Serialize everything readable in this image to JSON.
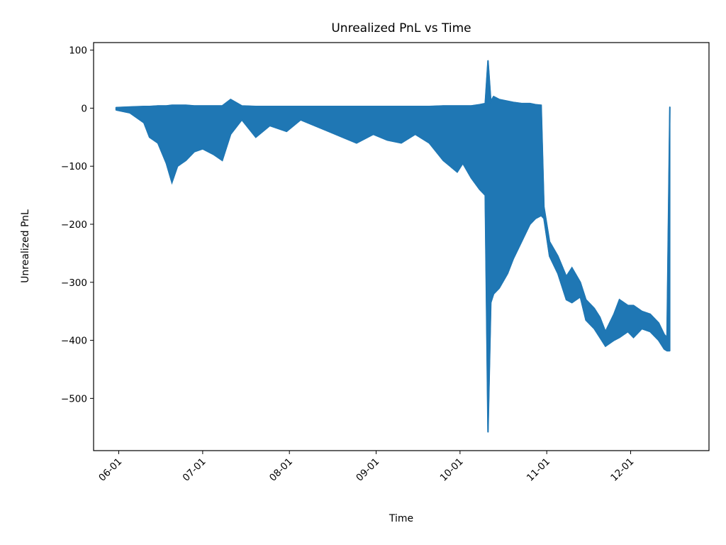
{
  "chart_data": {
    "type": "line",
    "title": "Unrealized PnL vs Time",
    "xlabel": "Time",
    "ylabel": "Unrealized PnL",
    "x_ticks": [
      "06-01",
      "07-01",
      "08-01",
      "09-01",
      "10-01",
      "11-01",
      "12-01"
    ],
    "y_ticks": [
      "100",
      "0",
      "−100",
      "−200",
      "−300",
      "−400",
      "−500"
    ],
    "x_range": [
      "05-23",
      "12-29"
    ],
    "ylim": [
      -590,
      113
    ],
    "grid": false,
    "legend": "none",
    "series_color": "#1f77b4",
    "series": [
      {
        "x": [
          "05-31",
          "06-05",
          "06-10",
          "06-12",
          "06-15",
          "06-18",
          "06-20",
          "06-22",
          "06-25",
          "06-28",
          "07-01",
          "07-05",
          "07-08",
          "07-11",
          "07-15",
          "07-20",
          "07-25",
          "07-31",
          "08-05",
          "08-10",
          "08-15",
          "08-20",
          "08-25",
          "08-31",
          "09-05",
          "09-10",
          "09-15",
          "09-20",
          "09-25",
          "09-30",
          "10-02",
          "10-05",
          "10-08",
          "10-10",
          "10-11",
          "10-12",
          "10-13",
          "10-15",
          "10-18",
          "10-20",
          "10-23",
          "10-26",
          "10-28",
          "10-30",
          "10-31",
          "11-02",
          "11-05",
          "11-08",
          "11-10",
          "11-13",
          "11-15",
          "11-18",
          "11-20",
          "11-22",
          "11-25",
          "11-27",
          "11-30",
          "12-02",
          "12-05",
          "12-08",
          "12-11",
          "12-13",
          "12-14",
          "12-15"
        ],
        "upper": [
          1,
          2,
          3,
          3,
          4,
          4,
          5,
          5,
          5,
          4,
          4,
          4,
          4,
          15,
          4,
          3,
          3,
          3,
          3,
          3,
          3,
          3,
          3,
          3,
          3,
          3,
          3,
          3,
          4,
          4,
          4,
          4,
          6,
          8,
          82,
          12,
          20,
          15,
          12,
          10,
          8,
          8,
          6,
          5,
          -170,
          -230,
          -255,
          -290,
          -275,
          -300,
          -330,
          -345,
          -360,
          -385,
          -355,
          -330,
          -340,
          -340,
          -350,
          -355,
          -370,
          -390,
          -395,
          2
        ],
        "lower": [
          -3,
          -8,
          -25,
          -50,
          -60,
          -95,
          -128,
          -100,
          -90,
          -75,
          -70,
          -80,
          -90,
          -45,
          -20,
          -50,
          -30,
          -40,
          -20,
          -30,
          -40,
          -50,
          -60,
          -45,
          -55,
          -60,
          -45,
          -60,
          -90,
          -110,
          -95,
          -120,
          -140,
          -150,
          -558,
          -335,
          -320,
          -310,
          -285,
          -260,
          -230,
          -200,
          -190,
          -185,
          -190,
          -255,
          -285,
          -330,
          -335,
          -325,
          -365,
          -380,
          -395,
          -410,
          -400,
          -395,
          -385,
          -395,
          -380,
          -385,
          -400,
          -415,
          -418,
          -418
        ]
      }
    ]
  }
}
